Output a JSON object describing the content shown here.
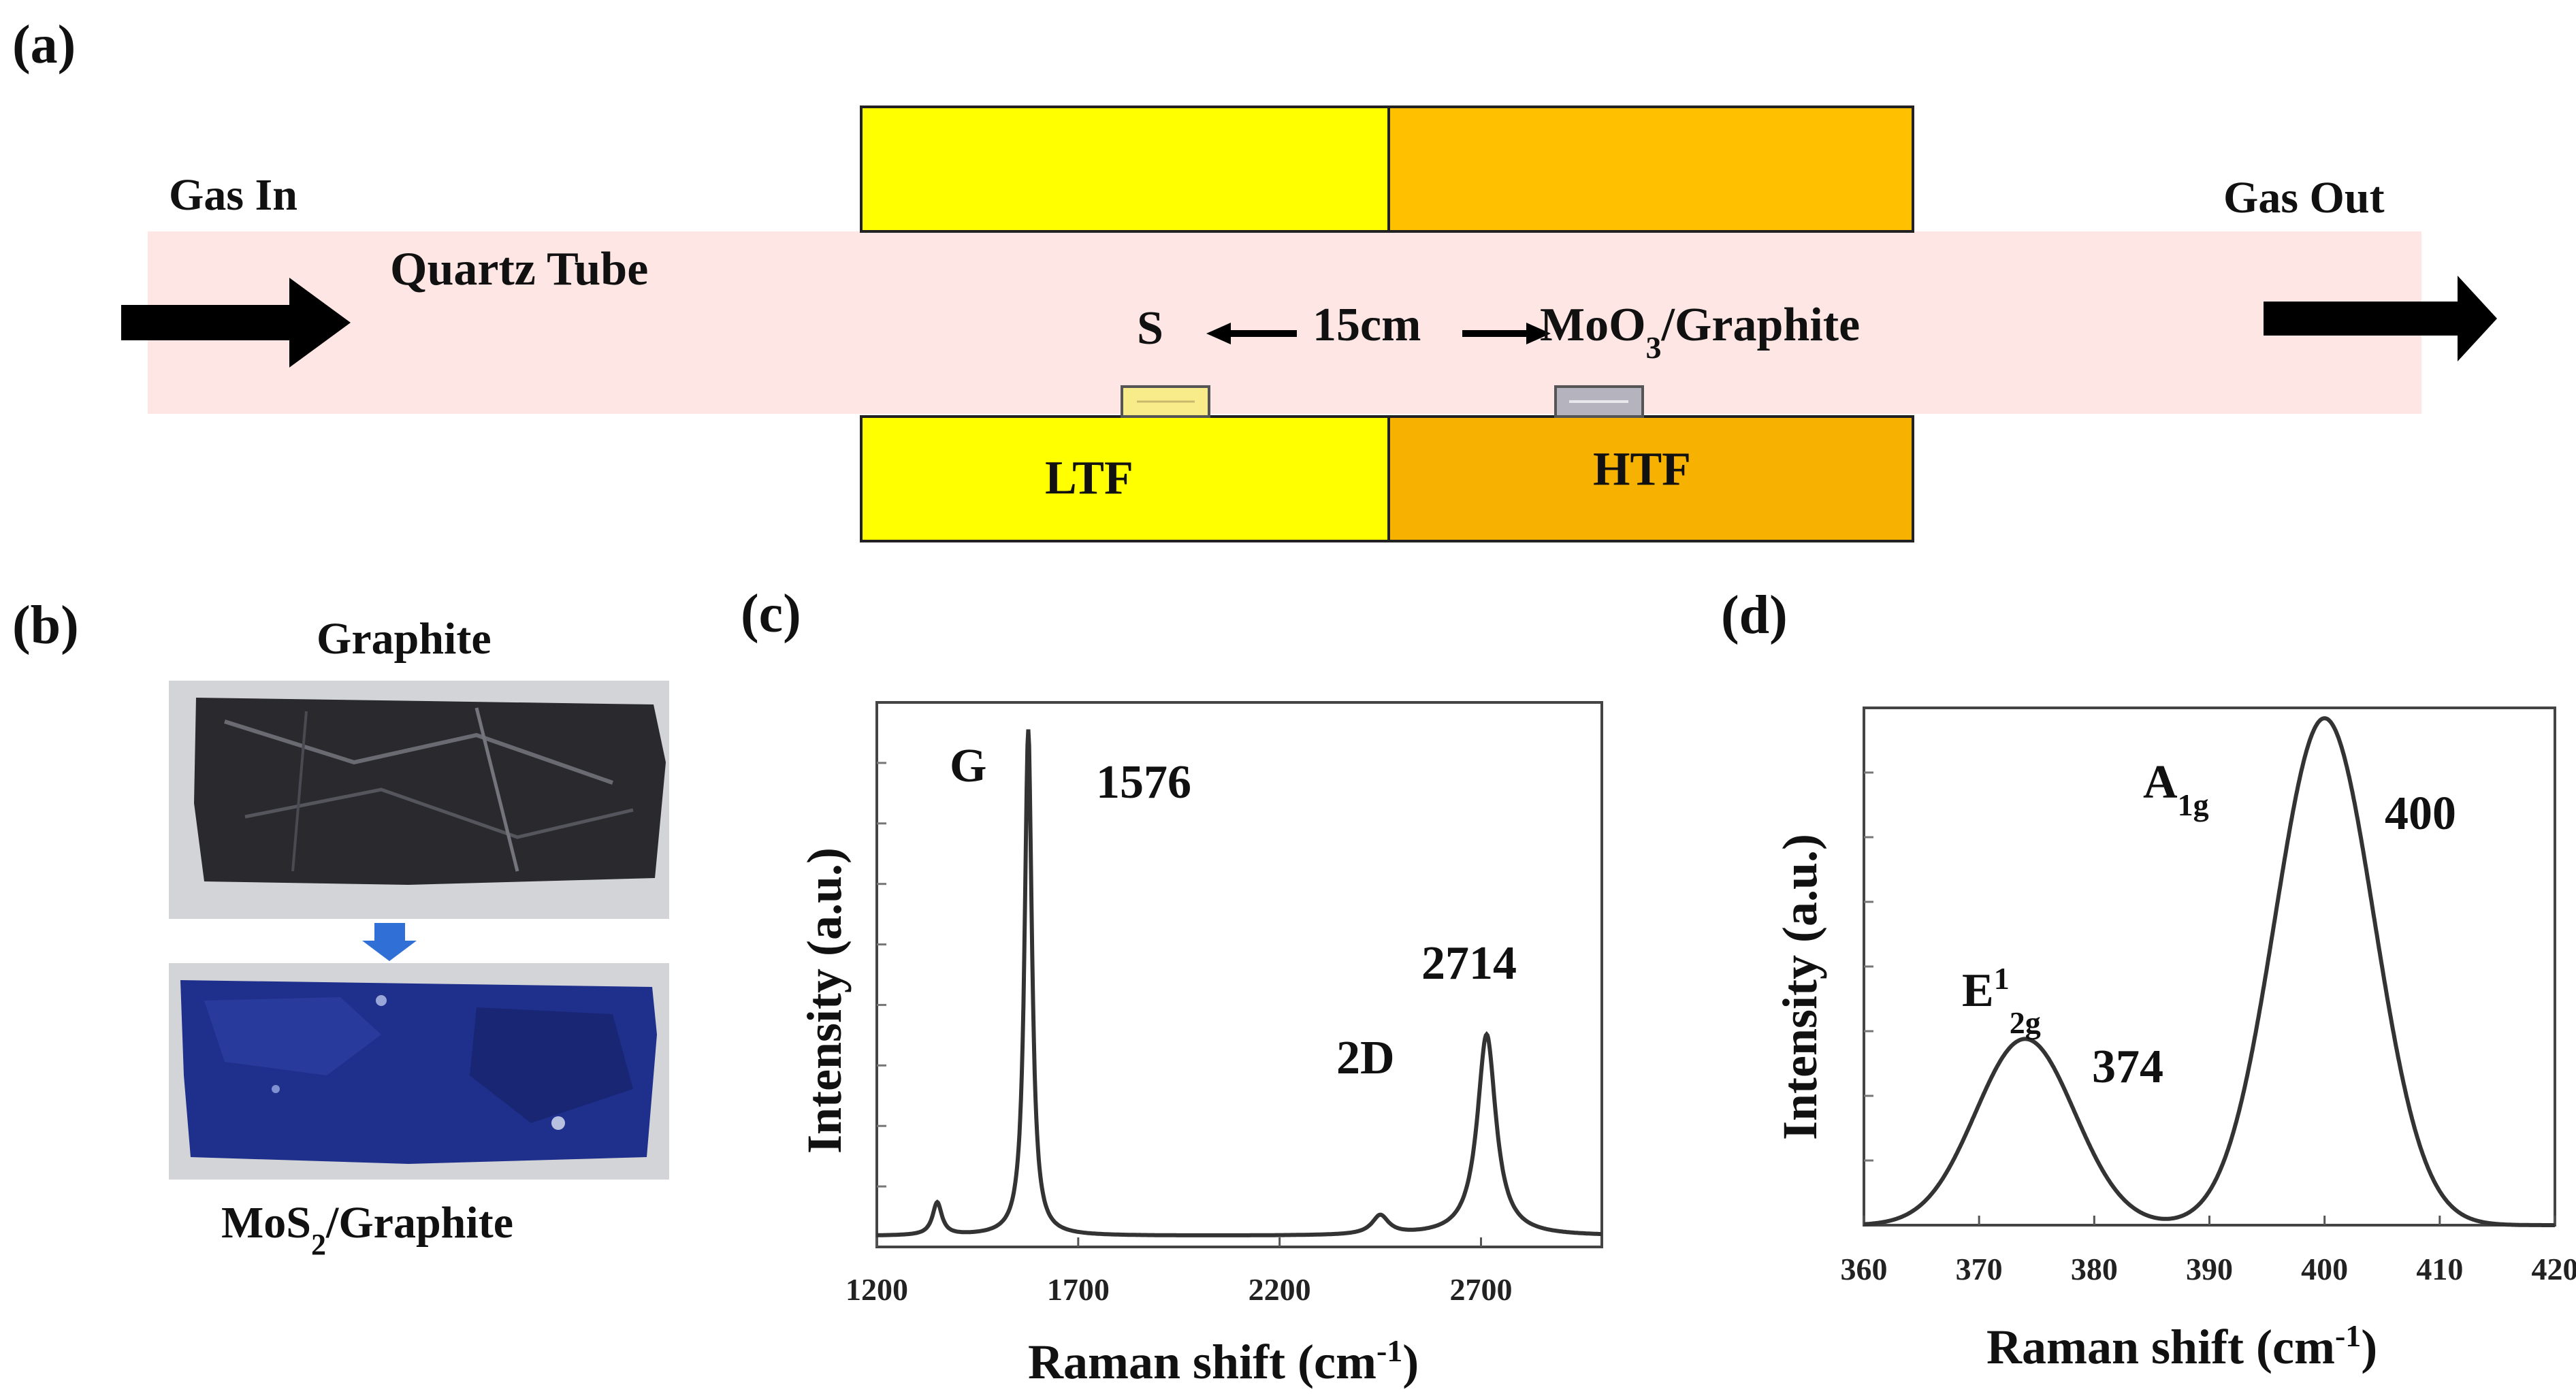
{
  "panel_a": {
    "panel_label": "(a)",
    "gas_in": "Gas In",
    "gas_out": "Gas Out",
    "tube_label": "Quartz Tube",
    "source_s": "S",
    "distance": "15cm",
    "source_mo_prefix": "MoO",
    "source_mo_sub": "3",
    "source_mo_suffix": "/Graphite",
    "ltf": "LTF",
    "htf": "HTF",
    "colors": {
      "tube": "#fde6e3",
      "ltf": "#ffff00",
      "htf": "#ffc000",
      "htf_dark": "#f7b100",
      "arrow": "#000000"
    }
  },
  "panel_b": {
    "panel_label": "(b)",
    "top_caption": "Graphite",
    "bottom_caption_prefix": "MoS",
    "bottom_caption_sub": "2",
    "bottom_caption_suffix": "/Graphite",
    "colors": {
      "graphite": "#2a2a2e",
      "mos2": "#1f2f8c",
      "arrow": "#2f6fd6",
      "photo_bg": "#d2d4d8"
    }
  },
  "panel_c": {
    "panel_label": "(c)",
    "peak_g": "G",
    "peak_g_value": "1576",
    "peak_2d": "2D",
    "peak_2d_value": "2714",
    "xlabel": "Raman shift (cm",
    "xlabel_sup": "-1",
    "xlabel_end": ")",
    "ylabel": "Intensity (a.u.)"
  },
  "panel_d": {
    "panel_label": "(d)",
    "peak_a_main": "A",
    "peak_a_sub": "1g",
    "peak_a_value": "400",
    "peak_e_main": "E",
    "peak_e_sup": "1",
    "peak_e_sub": "2g",
    "peak_e_value": "374",
    "xlabel": "Raman shift (cm",
    "xlabel_sup": "-1",
    "xlabel_end": ")",
    "ylabel": "Intensity (a.u.)"
  },
  "chart_data": [
    {
      "type": "line",
      "xlim": [
        1200,
        3000
      ],
      "xticks": [
        "1200",
        "1700",
        "2200",
        "2700"
      ],
      "tick_values": [
        1200,
        1700,
        2200,
        2700
      ],
      "ylim": [
        0,
        1.0
      ],
      "grid": false,
      "peaks": [
        {
          "x": 1350,
          "height": 0.06,
          "width": 14,
          "shape": "lorentz"
        },
        {
          "x": 1576,
          "height": 0.93,
          "width": 11,
          "shape": "lorentz"
        },
        {
          "x": 2450,
          "height": 0.035,
          "width": 25,
          "shape": "lorentz"
        },
        {
          "x": 2714,
          "height": 0.37,
          "width": 28,
          "shape": "lorentz"
        }
      ],
      "baseline": 0.02,
      "color": "#333333"
    },
    {
      "type": "line",
      "xlim": [
        360,
        420
      ],
      "xticks": [
        "360",
        "370",
        "380",
        "390",
        "400",
        "410",
        "420"
      ],
      "tick_values": [
        360,
        370,
        380,
        390,
        400,
        410,
        420
      ],
      "ylim": [
        0,
        1.0
      ],
      "grid": false,
      "peaks": [
        {
          "x": 374,
          "height": 0.36,
          "width": 4.3,
          "shape": "gauss"
        },
        {
          "x": 400,
          "height": 0.98,
          "width": 4.3,
          "shape": "gauss"
        }
      ],
      "baseline": 0.0,
      "color": "#333333"
    }
  ]
}
